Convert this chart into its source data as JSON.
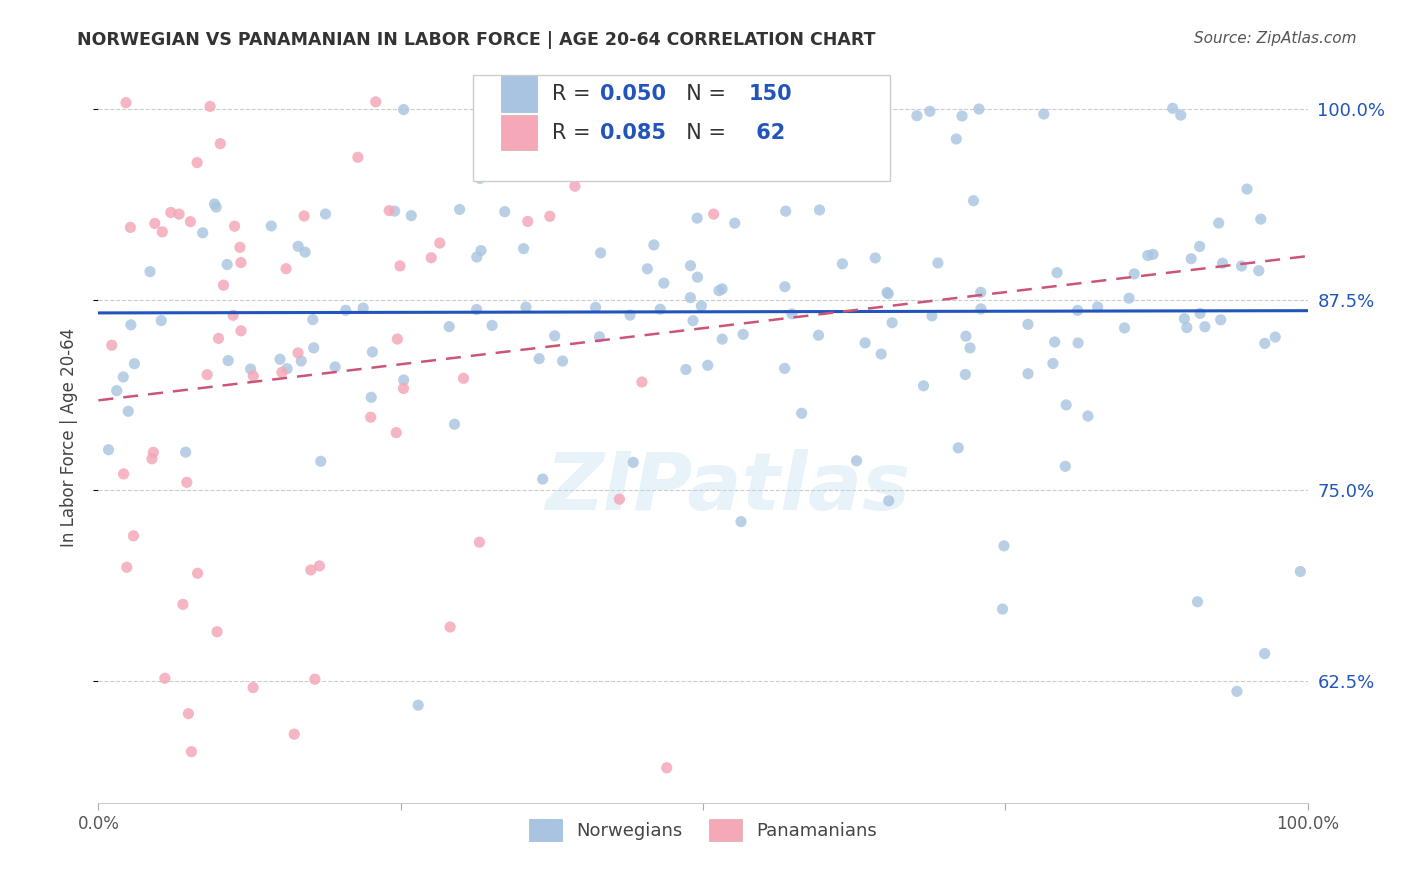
{
  "title": "NORWEGIAN VS PANAMANIAN IN LABOR FORCE | AGE 20-64 CORRELATION CHART",
  "source": "Source: ZipAtlas.com",
  "ylabel": "In Labor Force | Age 20-64",
  "xlim": [
    0.0,
    1.0
  ],
  "ylim": [
    0.545,
    1.025
  ],
  "yticks": [
    0.625,
    0.75,
    0.875,
    1.0
  ],
  "ytick_labels": [
    "62.5%",
    "75.0%",
    "87.5%",
    "100.0%"
  ],
  "xticks": [
    0.0,
    0.25,
    0.5,
    0.75,
    1.0
  ],
  "xtick_labels": [
    "0.0%",
    "",
    "",
    "",
    "100.0%"
  ],
  "blue_color": "#A8C4E0",
  "pink_color": "#F4A8B8",
  "blue_line_color": "#2255BB",
  "pink_line_color": "#CC5577",
  "watermark": "ZIPatlas",
  "legend_label_blue": "Norwegians",
  "legend_label_pink": "Panamanians",
  "background_color": "#FFFFFF",
  "grid_color": "#CCCCCC",
  "n_blue": 150,
  "n_pink": 62
}
